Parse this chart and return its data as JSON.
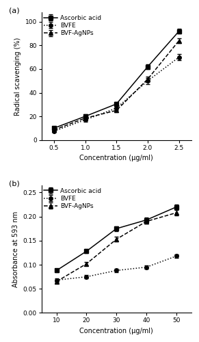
{
  "panel_a": {
    "title": "(a)",
    "x": [
      0.5,
      1.0,
      1.5,
      2.0,
      2.5
    ],
    "ascorbic_acid": [
      10.0,
      20.0,
      30.5,
      62.0,
      92.0
    ],
    "ascorbic_acid_err": [
      1.2,
      1.5,
      1.8,
      2.0,
      2.0
    ],
    "bvfe": [
      7.5,
      17.0,
      27.0,
      50.0,
      70.0
    ],
    "bvfe_err": [
      1.0,
      1.5,
      2.0,
      2.5,
      2.5
    ],
    "bvf_agnps": [
      8.5,
      18.5,
      25.0,
      51.5,
      84.0
    ],
    "bvf_agnps_err": [
      1.0,
      1.5,
      1.5,
      2.0,
      2.0
    ],
    "ylabel": "Radical scavenging (%)",
    "xlabel": "Concentration (μg/ml)",
    "ylim": [
      0,
      108
    ],
    "yticks": [
      0,
      20,
      40,
      60,
      80,
      100
    ],
    "xlim": [
      0.3,
      2.7
    ],
    "xticks": [
      0.5,
      1.0,
      1.5,
      2.0,
      2.5
    ]
  },
  "panel_b": {
    "title": "(b)",
    "x": [
      10,
      20,
      30,
      40,
      50
    ],
    "ascorbic_acid": [
      0.088,
      0.128,
      0.175,
      0.193,
      0.22
    ],
    "ascorbic_acid_err": [
      0.004,
      0.004,
      0.005,
      0.005,
      0.005
    ],
    "bvfe": [
      0.068,
      0.075,
      0.088,
      0.095,
      0.118
    ],
    "bvfe_err": [
      0.003,
      0.003,
      0.003,
      0.004,
      0.004
    ],
    "bvf_agnps": [
      0.065,
      0.102,
      0.153,
      0.19,
      0.208
    ],
    "bvf_agnps_err": [
      0.004,
      0.004,
      0.005,
      0.005,
      0.005
    ],
    "ylabel": "Absorbance at 593 nm",
    "xlabel": "Concentration (μg/ml)",
    "ylim": [
      0.0,
      0.265
    ],
    "yticks": [
      0.0,
      0.05,
      0.1,
      0.15,
      0.2,
      0.25
    ],
    "xlim": [
      5,
      55
    ],
    "xticks": [
      10,
      20,
      30,
      40,
      50
    ]
  },
  "legend_labels": [
    "Ascorbic acid",
    "BVFE",
    "BVF-AgNPs"
  ],
  "line_styles": {
    "ascorbic_acid": {
      "linestyle": "-",
      "marker": "s",
      "color": "#000000"
    },
    "bvfe": {
      "linestyle": ":",
      "marker": "o",
      "color": "#000000"
    },
    "bvf_agnps": {
      "linestyle": "--",
      "marker": "^",
      "color": "#000000"
    }
  },
  "markersize": 4,
  "linewidth": 1.1,
  "fontsize_label": 7,
  "fontsize_tick": 6.5,
  "fontsize_legend": 6.5,
  "fontsize_panel": 8,
  "capsize": 2,
  "elinewidth": 0.8
}
